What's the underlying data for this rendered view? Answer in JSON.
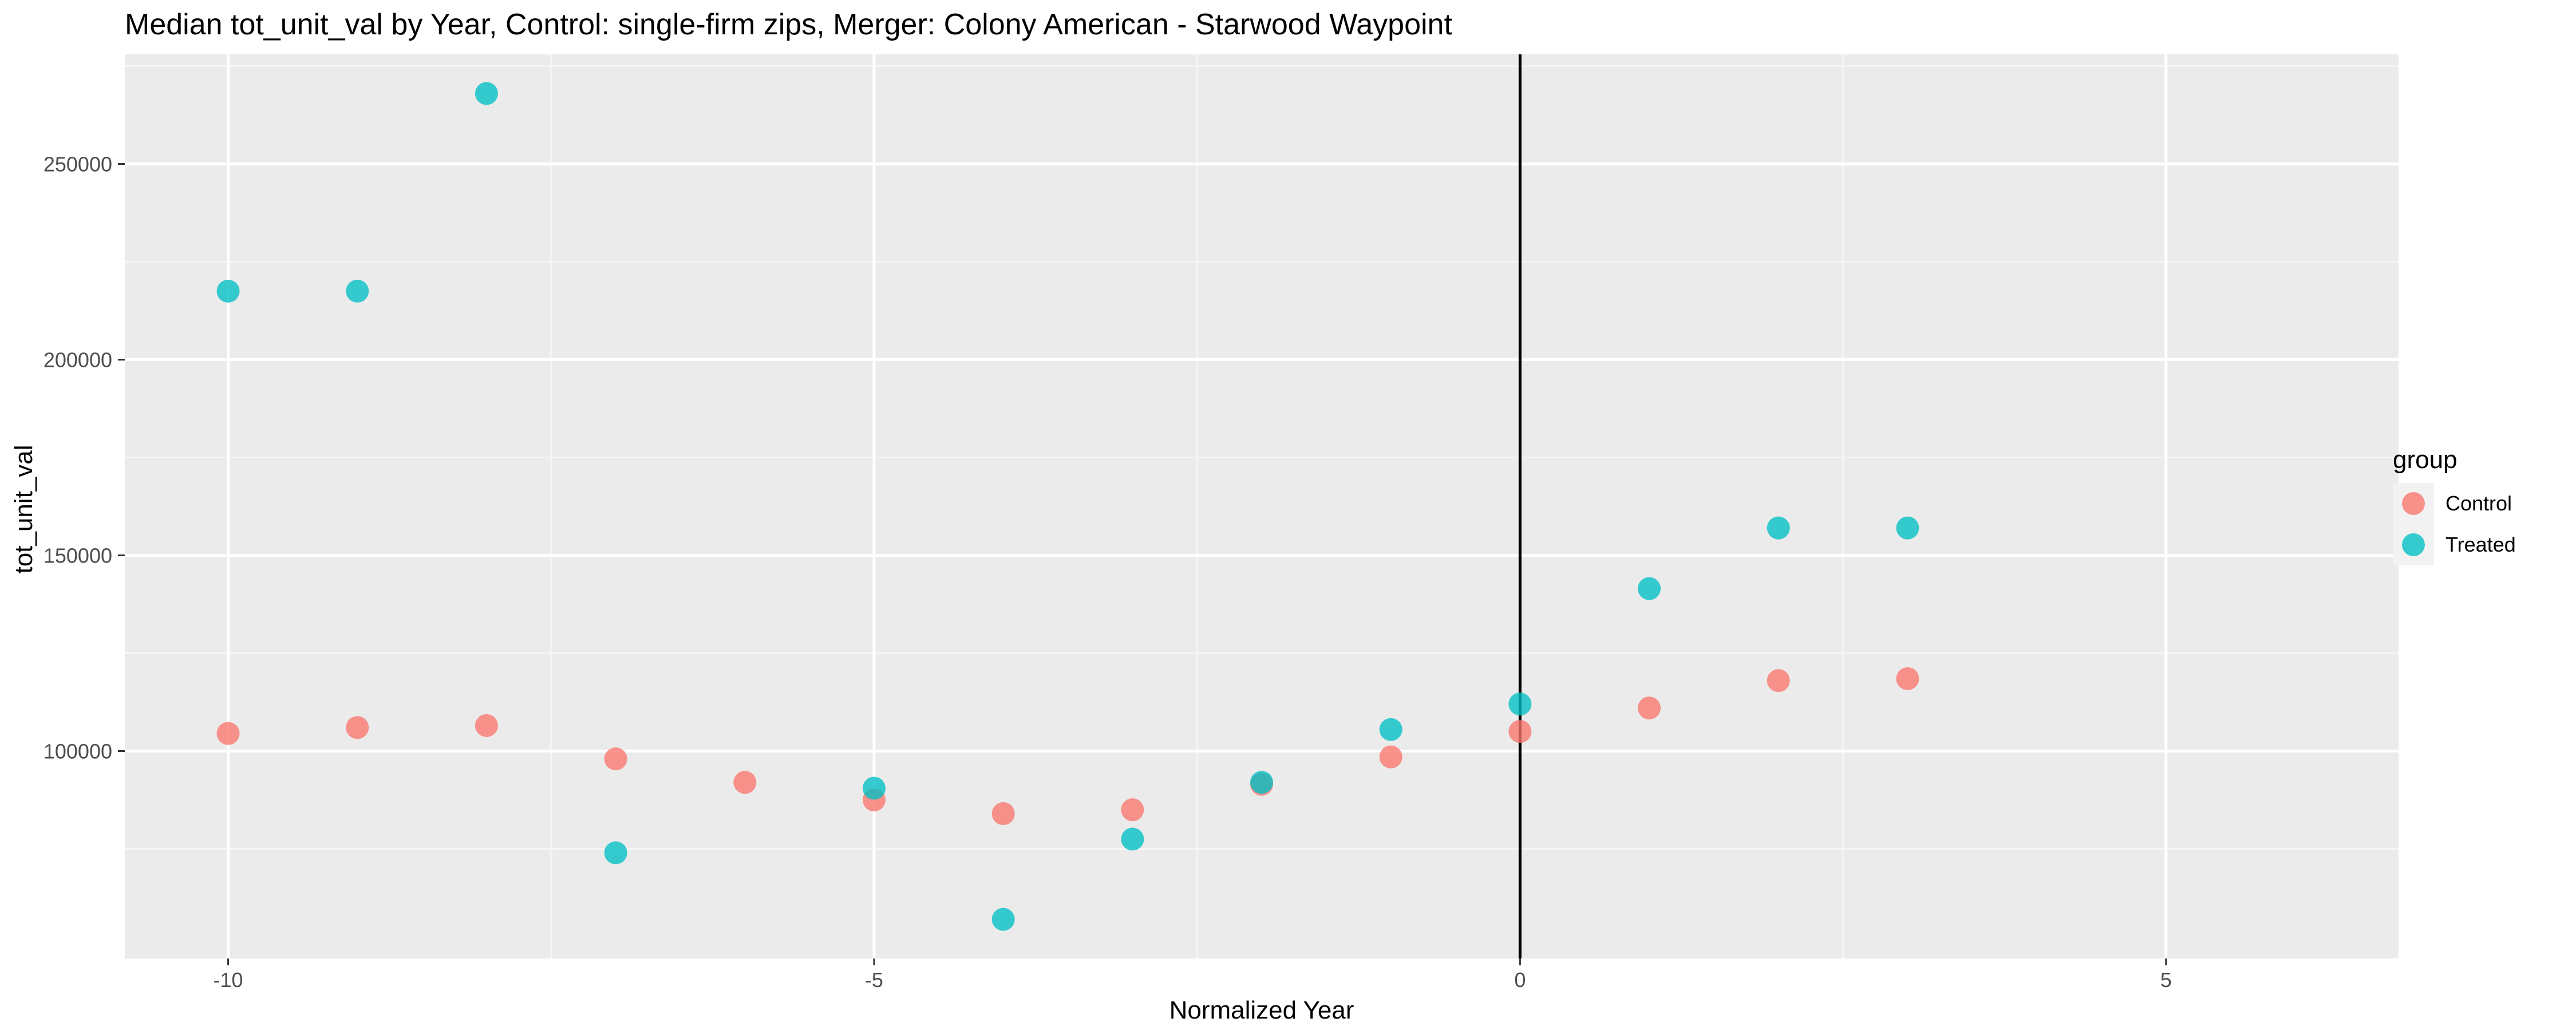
{
  "chart_data": {
    "type": "scatter",
    "title": "Median tot_unit_val by Year, Control: single-firm zips, Merger: Colony American - Starwood Waypoint",
    "xlabel": "Normalized Year",
    "ylabel": "tot_unit_val",
    "xlim": [
      -10.8,
      6.8
    ],
    "ylim": [
      47000,
      278000
    ],
    "x_ticks": [
      -10,
      -5,
      0,
      5
    ],
    "x_tick_labels": [
      "-10",
      "-5",
      "0",
      "5"
    ],
    "y_ticks": [
      100000,
      150000,
      200000,
      250000
    ],
    "y_tick_labels": [
      "100000",
      "150000",
      "200000",
      "250000"
    ],
    "grid": true,
    "reference_line": {
      "x": 0,
      "color": "#000000"
    },
    "legend": {
      "title": "group",
      "placement": "right"
    },
    "series": [
      {
        "name": "Control",
        "color": "#F8766D",
        "points": [
          {
            "x": -10,
            "y": 104500
          },
          {
            "x": -9,
            "y": 106000
          },
          {
            "x": -8,
            "y": 106500
          },
          {
            "x": -7,
            "y": 98000
          },
          {
            "x": -6,
            "y": 92000
          },
          {
            "x": -5,
            "y": 87500
          },
          {
            "x": -4,
            "y": 84000
          },
          {
            "x": -3,
            "y": 85000
          },
          {
            "x": -2,
            "y": 91500
          },
          {
            "x": -1,
            "y": 98500
          },
          {
            "x": 0,
            "y": 105000
          },
          {
            "x": 1,
            "y": 111000
          },
          {
            "x": 2,
            "y": 118000
          },
          {
            "x": 3,
            "y": 118500
          }
        ]
      },
      {
        "name": "Treated",
        "color": "#00BFC4",
        "points": [
          {
            "x": -10,
            "y": 217500
          },
          {
            "x": -9,
            "y": 217500
          },
          {
            "x": -8,
            "y": 268000
          },
          {
            "x": -7,
            "y": 74000
          },
          {
            "x": -5,
            "y": 90500
          },
          {
            "x": -4,
            "y": 57000
          },
          {
            "x": -3,
            "y": 77500
          },
          {
            "x": -2,
            "y": 92000
          },
          {
            "x": -1,
            "y": 105500
          },
          {
            "x": 0,
            "y": 112000
          },
          {
            "x": 1,
            "y": 141500
          },
          {
            "x": 2,
            "y": 157000
          },
          {
            "x": 3,
            "y": 157000
          }
        ]
      }
    ]
  },
  "colors": {
    "panel_background": "#EBEBEB",
    "grid_major": "#FFFFFF",
    "grid_minor": "#F5F5F5",
    "tick_text": "#4D4D4D"
  }
}
